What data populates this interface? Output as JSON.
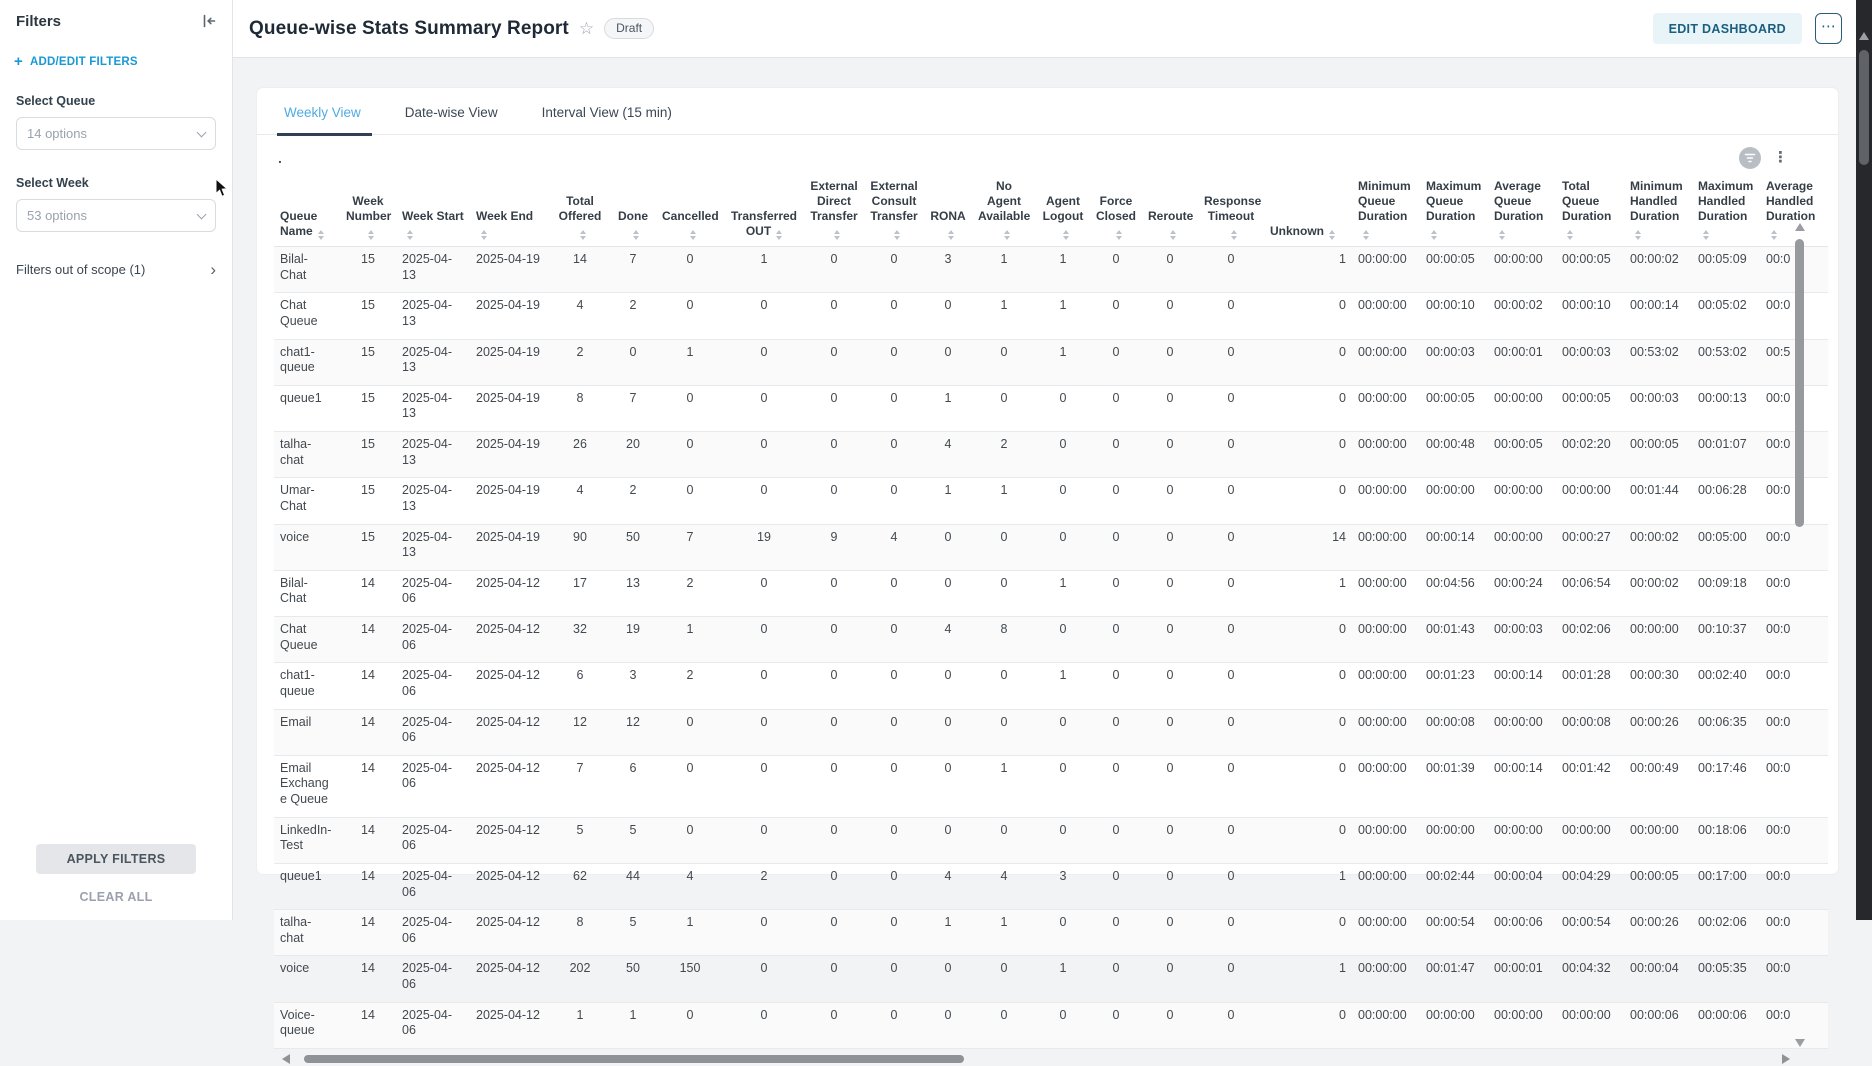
{
  "sidebar": {
    "title": "Filters",
    "add_edit_label": "ADD/EDIT FILTERS",
    "filters": [
      {
        "label": "Select Queue",
        "value": "14 options"
      },
      {
        "label": "Select Week",
        "value": "53 options"
      }
    ],
    "out_of_scope_label": "Filters out of scope (1)",
    "apply_label": "APPLY FILTERS",
    "clear_label": "CLEAR ALL"
  },
  "header": {
    "title": "Queue-wise Stats Summary Report",
    "badge": "Draft",
    "edit_button": "EDIT DASHBOARD"
  },
  "tabs": [
    {
      "label": "Weekly View",
      "active": true
    },
    {
      "label": "Date-wise View",
      "active": false
    },
    {
      "label": "Interval View (15 min)",
      "active": false
    }
  ],
  "widget": {
    "title": "."
  },
  "icons": {
    "star": "☆",
    "more_options": "⋯",
    "kebab": "⋮",
    "chevron_right": "›"
  },
  "colors": {
    "accent_blue": "#1899d6",
    "tab_active": "#4fabe1",
    "tab_underline": "#2f4057",
    "edit_button_bg": "#e9f4f9",
    "edit_button_text": "#1a5f7e"
  },
  "table": {
    "columns": [
      "Queue Name",
      "Week Number",
      "Week Start",
      "Week End",
      "Total Offered",
      "Done",
      "Cancelled",
      "Transferred OUT",
      "External Direct Transfer",
      "External Consult Transfer",
      "RONA",
      "No Agent Available",
      "Agent Logout",
      "Force Closed",
      "Reroute",
      "Response Timeout",
      "Unknown",
      "Minimum Queue Duration",
      "Maximum Queue Duration",
      "Average Queue Duration",
      "Total Queue Duration",
      "Minimum Handled Duration",
      "Maximum Handled Duration",
      "Average Handled Duration"
    ],
    "rows": [
      [
        "Bilal-Chat",
        "15",
        "2025-04-13",
        "2025-04-19",
        "14",
        "7",
        "0",
        "1",
        "0",
        "0",
        "3",
        "1",
        "1",
        "0",
        "0",
        "0",
        "1",
        "00:00:00",
        "00:00:05",
        "00:00:00",
        "00:00:05",
        "00:00:02",
        "00:05:09",
        "00:0"
      ],
      [
        "Chat Queue",
        "15",
        "2025-04-13",
        "2025-04-19",
        "4",
        "2",
        "0",
        "0",
        "0",
        "0",
        "0",
        "1",
        "1",
        "0",
        "0",
        "0",
        "0",
        "00:00:00",
        "00:00:10",
        "00:00:02",
        "00:00:10",
        "00:00:14",
        "00:05:02",
        "00:0"
      ],
      [
        "chat1-queue",
        "15",
        "2025-04-13",
        "2025-04-19",
        "2",
        "0",
        "1",
        "0",
        "0",
        "0",
        "0",
        "0",
        "1",
        "0",
        "0",
        "0",
        "0",
        "00:00:00",
        "00:00:03",
        "00:00:01",
        "00:00:03",
        "00:53:02",
        "00:53:02",
        "00:5"
      ],
      [
        "queue1",
        "15",
        "2025-04-13",
        "2025-04-19",
        "8",
        "7",
        "0",
        "0",
        "0",
        "0",
        "1",
        "0",
        "0",
        "0",
        "0",
        "0",
        "0",
        "00:00:00",
        "00:00:05",
        "00:00:00",
        "00:00:05",
        "00:00:03",
        "00:00:13",
        "00:0"
      ],
      [
        "talha-chat",
        "15",
        "2025-04-13",
        "2025-04-19",
        "26",
        "20",
        "0",
        "0",
        "0",
        "0",
        "4",
        "2",
        "0",
        "0",
        "0",
        "0",
        "0",
        "00:00:00",
        "00:00:48",
        "00:00:05",
        "00:02:20",
        "00:00:05",
        "00:01:07",
        "00:0"
      ],
      [
        "Umar-Chat",
        "15",
        "2025-04-13",
        "2025-04-19",
        "4",
        "2",
        "0",
        "0",
        "0",
        "0",
        "1",
        "1",
        "0",
        "0",
        "0",
        "0",
        "0",
        "00:00:00",
        "00:00:00",
        "00:00:00",
        "00:00:00",
        "00:01:44",
        "00:06:28",
        "00:0"
      ],
      [
        "voice",
        "15",
        "2025-04-13",
        "2025-04-19",
        "90",
        "50",
        "7",
        "19",
        "9",
        "4",
        "0",
        "0",
        "0",
        "0",
        "0",
        "0",
        "14",
        "00:00:00",
        "00:00:14",
        "00:00:00",
        "00:00:27",
        "00:00:02",
        "00:05:00",
        "00:0"
      ],
      [
        "Bilal-Chat",
        "14",
        "2025-04-06",
        "2025-04-12",
        "17",
        "13",
        "2",
        "0",
        "0",
        "0",
        "0",
        "0",
        "1",
        "0",
        "0",
        "0",
        "1",
        "00:00:00",
        "00:04:56",
        "00:00:24",
        "00:06:54",
        "00:00:02",
        "00:09:18",
        "00:0"
      ],
      [
        "Chat Queue",
        "14",
        "2025-04-06",
        "2025-04-12",
        "32",
        "19",
        "1",
        "0",
        "0",
        "0",
        "4",
        "8",
        "0",
        "0",
        "0",
        "0",
        "0",
        "00:00:00",
        "00:01:43",
        "00:00:03",
        "00:02:06",
        "00:00:00",
        "00:10:37",
        "00:0"
      ],
      [
        "chat1-queue",
        "14",
        "2025-04-06",
        "2025-04-12",
        "6",
        "3",
        "2",
        "0",
        "0",
        "0",
        "0",
        "0",
        "1",
        "0",
        "0",
        "0",
        "0",
        "00:00:00",
        "00:01:23",
        "00:00:14",
        "00:01:28",
        "00:00:30",
        "00:02:40",
        "00:0"
      ],
      [
        "Email",
        "14",
        "2025-04-06",
        "2025-04-12",
        "12",
        "12",
        "0",
        "0",
        "0",
        "0",
        "0",
        "0",
        "0",
        "0",
        "0",
        "0",
        "0",
        "00:00:00",
        "00:00:08",
        "00:00:00",
        "00:00:08",
        "00:00:26",
        "00:06:35",
        "00:0"
      ],
      [
        "Email Exchange Queue",
        "14",
        "2025-04-06",
        "2025-04-12",
        "7",
        "6",
        "0",
        "0",
        "0",
        "0",
        "0",
        "1",
        "0",
        "0",
        "0",
        "0",
        "0",
        "00:00:00",
        "00:01:39",
        "00:00:14",
        "00:01:42",
        "00:00:49",
        "00:17:46",
        "00:0"
      ],
      [
        "LinkedIn-Test",
        "14",
        "2025-04-06",
        "2025-04-12",
        "5",
        "5",
        "0",
        "0",
        "0",
        "0",
        "0",
        "0",
        "0",
        "0",
        "0",
        "0",
        "0",
        "00:00:00",
        "00:00:00",
        "00:00:00",
        "00:00:00",
        "00:00:00",
        "00:18:06",
        "00:0"
      ],
      [
        "queue1",
        "14",
        "2025-04-06",
        "2025-04-12",
        "62",
        "44",
        "4",
        "2",
        "0",
        "0",
        "4",
        "4",
        "3",
        "0",
        "0",
        "0",
        "1",
        "00:00:00",
        "00:02:44",
        "00:00:04",
        "00:04:29",
        "00:00:05",
        "00:17:00",
        "00:0"
      ],
      [
        "talha-chat",
        "14",
        "2025-04-06",
        "2025-04-12",
        "8",
        "5",
        "1",
        "0",
        "0",
        "0",
        "1",
        "1",
        "0",
        "0",
        "0",
        "0",
        "0",
        "00:00:00",
        "00:00:54",
        "00:00:06",
        "00:00:54",
        "00:00:26",
        "00:02:06",
        "00:0"
      ],
      [
        "voice",
        "14",
        "2025-04-06",
        "2025-04-12",
        "202",
        "50",
        "150",
        "0",
        "0",
        "0",
        "0",
        "0",
        "1",
        "0",
        "0",
        "0",
        "1",
        "00:00:00",
        "00:01:47",
        "00:00:01",
        "00:04:32",
        "00:00:04",
        "00:05:35",
        "00:0"
      ],
      [
        "Voice-queue",
        "14",
        "2025-04-06",
        "2025-04-12",
        "1",
        "1",
        "0",
        "0",
        "0",
        "0",
        "0",
        "0",
        "0",
        "0",
        "0",
        "0",
        "0",
        "00:00:00",
        "00:00:00",
        "00:00:00",
        "00:00:00",
        "00:00:06",
        "00:00:06",
        "00:0"
      ]
    ]
  }
}
